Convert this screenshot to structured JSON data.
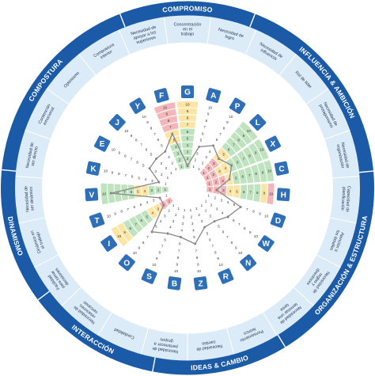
{
  "colors": {
    "ring": "#1b5aa6",
    "band": "#dcebf8",
    "letter_box": "#2f6fb7",
    "green": "#bfe3bf",
    "yellow": "#fbe4a4",
    "red": "#f4b6b9",
    "line": "#888888"
  },
  "categories": [
    {
      "label": "COMPROMISO",
      "start": -21.2,
      "end": 21.2
    },
    {
      "label": "INFLUENCIA & AMBICIÓN",
      "start": 21.2,
      "end": 84.8
    },
    {
      "label": "ORGANIZACIÓN & ESTRUCTURA",
      "start": 84.8,
      "end": 148.4
    },
    {
      "label": "IDEAS & CAMBIO",
      "start": 148.4,
      "end": 190.8
    },
    {
      "label": "INTERACCIÓN",
      "start": 190.8,
      "end": 233.2
    },
    {
      "label": "DINAMISMO",
      "start": 233.2,
      "end": 275.6
    },
    {
      "label": "COMPOSTURA",
      "start": 275.6,
      "end": 338.8
    }
  ],
  "scale_numbers": [
    "1",
    "2",
    "3",
    "4",
    "5",
    "6",
    "7",
    "8",
    "9",
    "10"
  ],
  "traits": [
    {
      "letter": "G",
      "label": "Concentración en el trabajo",
      "score": 1,
      "zones": [
        "green",
        "green",
        "green",
        "green",
        "green",
        "green",
        "yellow",
        "yellow",
        "yellow",
        "yellow"
      ],
      "show_cells": true
    },
    {
      "letter": "A",
      "label": "Necesidad de logro",
      "score": 4,
      "zones": [],
      "show_cells": false
    },
    {
      "letter": "P",
      "label": "Necesidad de influencia",
      "score": 5,
      "zones": [],
      "show_cells": false
    },
    {
      "letter": "L",
      "label": "Rol de líder",
      "score": 4,
      "zones": [
        "red",
        "red",
        "red",
        "yellow",
        "yellow",
        "green",
        "green",
        "green",
        "green",
        "green"
      ],
      "show_cells": true
    },
    {
      "letter": "X",
      "label": "Necesidad de protagonismo",
      "score": 5,
      "zones": [
        "red",
        "red",
        "yellow",
        "yellow",
        "green",
        "green",
        "green",
        "green",
        "green",
        "green"
      ],
      "show_cells": true
    },
    {
      "letter": "C",
      "label": "Necesidad de organización",
      "score": 4,
      "zones": [
        "red",
        "red",
        "red",
        "yellow",
        "green",
        "green",
        "green",
        "green",
        "green",
        "green"
      ],
      "show_cells": true
    },
    {
      "letter": "H",
      "label": "Capacidad de planificación",
      "score": 2,
      "zones": [
        "red",
        "red",
        "red",
        "yellow",
        "yellow",
        "green",
        "green",
        "green",
        "yellow",
        "red"
      ],
      "show_cells": true
    },
    {
      "letter": "D",
      "label": "Atención a los detalles",
      "score": 6,
      "zones": [],
      "show_cells": false
    },
    {
      "letter": "W",
      "label": "Necesidad de reglas y directrices",
      "score": 5,
      "zones": [],
      "show_cells": false
    },
    {
      "letter": "N",
      "label": "Necesidad de terminar una tarea",
      "score": 4,
      "zones": [],
      "show_cells": false
    },
    {
      "letter": "R",
      "label": "Pensamiento teórico",
      "score": 4,
      "zones": [],
      "show_cells": false
    },
    {
      "letter": "Z",
      "label": "Necesidad de cambio",
      "score": 6,
      "zones": [],
      "show_cells": false
    },
    {
      "letter": "B",
      "label": "Necesidad de pertenecer a grupos",
      "score": 5,
      "zones": [],
      "show_cells": false
    },
    {
      "letter": "S",
      "label": "Cordialidad",
      "score": 5,
      "zones": [],
      "show_cells": false
    },
    {
      "letter": "O",
      "label": "Necesidad de relaciones cercanas",
      "score": 6,
      "zones": [],
      "show_cells": false
    },
    {
      "letter": "I",
      "label": "Facilidad para tomar decisiones",
      "score": 2,
      "zones": [
        "red",
        "red",
        "yellow",
        "yellow",
        "green",
        "green",
        "green",
        "green",
        "yellow",
        "yellow"
      ],
      "show_cells": true
    },
    {
      "letter": "T",
      "label": "Dinámico en el trabajo",
      "score": 2,
      "zones": [],
      "show_cells": false
    },
    {
      "letter": "V",
      "label": "Necesidad de ser dinámico",
      "score": 9,
      "zones": [
        "green",
        "green",
        "green",
        "yellow",
        "yellow",
        "green",
        "green",
        "green",
        "green",
        "green"
      ],
      "show_cells": true
    },
    {
      "letter": "K",
      "label": "Necesidad de ser directo",
      "score": 2,
      "zones": [],
      "show_cells": false
    },
    {
      "letter": "E",
      "label": "Contención emocional",
      "score": 4,
      "zones": [],
      "show_cells": false
    },
    {
      "letter": "J",
      "label": "Optimismo",
      "score": 4,
      "zones": [],
      "show_cells": false
    },
    {
      "letter": "Y",
      "label": "Compostura interior",
      "score": 4,
      "zones": [],
      "show_cells": false
    },
    {
      "letter": "F",
      "label": "Necesidad de apoyar a los superiores",
      "score": 6,
      "zones": [
        "green",
        "green",
        "green",
        "green",
        "yellow",
        "yellow",
        "red",
        "red",
        "red",
        "red"
      ],
      "show_cells": true
    }
  ]
}
